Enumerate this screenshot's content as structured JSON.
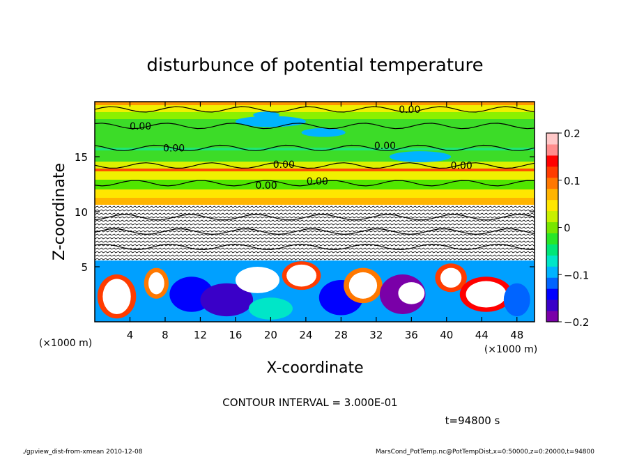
{
  "chart_data": {
    "type": "heatmap",
    "title": "disturbunce of potential temperature",
    "xlabel": "X-coordinate",
    "ylabel": "Z-coordinate",
    "x_unit_label": "(×1000 m)",
    "y_unit_label": "(×1000 m)",
    "xlim": [
      0,
      50
    ],
    "ylim": [
      0,
      20
    ],
    "x_ticks": [
      4,
      8,
      12,
      16,
      20,
      24,
      28,
      32,
      36,
      40,
      44,
      48
    ],
    "y_ticks": [
      5,
      10,
      15
    ],
    "contour_labels": [
      {
        "x": 35.8,
        "z": 19.3,
        "text": "0.00"
      },
      {
        "x": 5.2,
        "z": 17.8,
        "text": "0.00"
      },
      {
        "x": 9.0,
        "z": 15.8,
        "text": "0.00"
      },
      {
        "x": 33.0,
        "z": 16.0,
        "text": "0.00"
      },
      {
        "x": 21.5,
        "z": 14.3,
        "text": "0.00"
      },
      {
        "x": 41.7,
        "z": 14.2,
        "text": "0.00"
      },
      {
        "x": 25.3,
        "z": 12.8,
        "text": "0.00"
      },
      {
        "x": 19.5,
        "z": 12.4,
        "text": "0.00"
      }
    ],
    "colorbar": {
      "min": -0.2,
      "max": 0.2,
      "tick_labels": [
        "0.2",
        "0.1",
        "0",
        "−0.1",
        "−0.2"
      ],
      "colors": [
        "#7a00a8",
        "#3a00c8",
        "#0000ff",
        "#0064ff",
        "#00b4ff",
        "#00e6c8",
        "#00e678",
        "#28e628",
        "#78e600",
        "#c8f000",
        "#ffe600",
        "#ffb400",
        "#ff7800",
        "#ff3c00",
        "#ff0000",
        "#ff8c8c",
        "#ffc8c8"
      ]
    },
    "contour_interval_text": "CONTOUR INTERVAL = 3.000E-01",
    "time_text": "t=94800 s"
  },
  "footer": {
    "left": "./gpview_dist-from-xmean  2010-12-08",
    "right": "MarsCond_PotTemp.nc@PotTempDist,x=0:50000,z=0:20000,t=94800"
  }
}
